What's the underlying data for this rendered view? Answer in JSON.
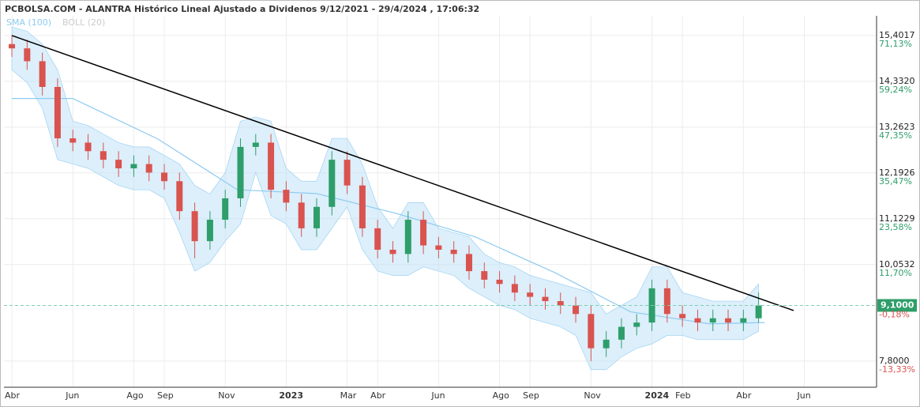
{
  "chart_data": {
    "type": "candlestick",
    "title": "PCBOLSA.COM - ALANTRA Histórico Lineal Ajustado a Dividenos 9/12/2021 - 29/4/2024 , 17:06:32",
    "legend": [
      "SMA (100)",
      "BOLL (20)"
    ],
    "x": [
      0,
      0.5,
      1,
      1.5,
      2,
      2.5,
      3,
      3.5,
      4,
      4.5,
      5,
      5.5,
      6,
      6.5,
      7,
      7.5,
      8,
      8.5,
      9,
      9.5,
      10,
      10.5,
      11,
      11.5,
      12,
      12.5,
      13,
      13.5,
      14,
      14.5,
      15,
      15.5,
      16,
      16.5,
      17,
      17.5,
      18,
      18.5,
      19,
      19.5,
      20,
      20.5,
      21,
      21.5,
      22,
      22.5,
      23,
      23.5,
      24,
      24.5
    ],
    "open": [
      15.2,
      15.1,
      14.8,
      14.2,
      13.0,
      12.9,
      12.7,
      12.5,
      12.3,
      12.4,
      12.2,
      12.0,
      11.3,
      10.6,
      11.1,
      11.6,
      12.8,
      12.9,
      11.8,
      11.5,
      10.9,
      11.4,
      12.5,
      11.9,
      10.9,
      10.4,
      10.3,
      11.1,
      10.5,
      10.4,
      10.3,
      9.9,
      9.7,
      9.6,
      9.4,
      9.3,
      9.2,
      9.1,
      8.9,
      8.1,
      8.3,
      8.6,
      8.7,
      9.5,
      8.9,
      8.8,
      8.7,
      8.8,
      8.7,
      8.8
    ],
    "high": [
      15.4,
      15.3,
      15.0,
      14.4,
      13.2,
      13.1,
      12.9,
      12.7,
      12.6,
      12.6,
      12.4,
      12.2,
      11.5,
      11.3,
      11.8,
      13.0,
      13.1,
      13.1,
      12.0,
      11.7,
      11.6,
      12.7,
      12.7,
      12.1,
      11.1,
      10.6,
      11.3,
      11.3,
      10.7,
      10.6,
      10.5,
      10.1,
      9.9,
      9.8,
      9.6,
      9.5,
      9.4,
      9.3,
      9.1,
      8.5,
      8.8,
      8.9,
      9.7,
      9.7,
      9.1,
      9.0,
      9.0,
      9.0,
      9.0,
      9.4
    ],
    "low": [
      14.9,
      14.6,
      14.0,
      12.8,
      12.7,
      12.5,
      12.3,
      12.1,
      12.1,
      12.0,
      11.8,
      11.1,
      10.2,
      10.4,
      10.9,
      11.4,
      12.6,
      11.6,
      11.3,
      10.7,
      10.7,
      11.2,
      11.7,
      10.7,
      10.2,
      10.1,
      10.1,
      10.3,
      10.2,
      10.1,
      9.7,
      9.5,
      9.4,
      9.2,
      9.1,
      9.0,
      8.9,
      8.7,
      7.8,
      7.9,
      8.1,
      8.4,
      8.5,
      8.7,
      8.6,
      8.5,
      8.5,
      8.5,
      8.5,
      8.7
    ],
    "close": [
      15.1,
      14.8,
      14.2,
      13.0,
      12.9,
      12.7,
      12.5,
      12.3,
      12.4,
      12.2,
      12.0,
      11.3,
      10.6,
      11.1,
      11.6,
      12.8,
      12.9,
      11.8,
      11.5,
      10.9,
      11.4,
      12.5,
      11.9,
      10.9,
      10.4,
      10.3,
      11.1,
      10.5,
      10.4,
      10.3,
      9.9,
      9.7,
      9.6,
      9.4,
      9.3,
      9.2,
      9.1,
      8.9,
      8.1,
      8.3,
      8.6,
      8.7,
      9.5,
      8.9,
      8.8,
      8.7,
      8.8,
      8.7,
      8.8,
      9.1
    ],
    "up_color": "#2e9e6a",
    "down_color": "#d9534f",
    "boll_upper": [
      15.6,
      15.5,
      15.2,
      14.6,
      13.4,
      13.3,
      13.1,
      12.9,
      12.8,
      12.8,
      12.6,
      12.4,
      11.9,
      11.7,
      12.2,
      13.4,
      13.5,
      13.4,
      12.3,
      12.0,
      12.0,
      13.0,
      13.0,
      12.4,
      11.4,
      10.9,
      11.5,
      11.5,
      10.9,
      10.8,
      10.7,
      10.3,
      10.1,
      10.0,
      9.8,
      9.7,
      9.6,
      9.5,
      9.4,
      8.9,
      9.1,
      9.3,
      10.0,
      10.0,
      9.4,
      9.3,
      9.2,
      9.2,
      9.2,
      9.6
    ],
    "boll_lower": [
      14.6,
      14.3,
      13.7,
      12.5,
      12.4,
      12.3,
      12.1,
      11.9,
      11.8,
      11.8,
      11.6,
      10.8,
      9.9,
      10.1,
      10.6,
      11.0,
      12.2,
      11.2,
      11.0,
      10.4,
      10.4,
      10.9,
      11.4,
      10.4,
      9.9,
      9.8,
      9.8,
      10.0,
      9.9,
      9.8,
      9.5,
      9.3,
      9.1,
      9.0,
      8.8,
      8.7,
      8.6,
      8.4,
      7.6,
      7.6,
      7.9,
      8.1,
      8.2,
      8.4,
      8.4,
      8.3,
      8.3,
      8.3,
      8.3,
      8.5
    ],
    "boll_color": "#bfe2f7",
    "sma": {
      "name": "SMA (100)",
      "color": "#8ccbf0",
      "x": [
        0,
        2,
        4.8,
        7.4,
        10,
        12.6,
        15.2,
        17.8,
        20.3,
        22.9,
        24.7
      ],
      "values": [
        13.93,
        13.93,
        12.98,
        11.8,
        11.71,
        11.25,
        10.7,
        9.87,
        8.95,
        8.67,
        8.7
      ]
    },
    "trendline": {
      "x": [
        0,
        25.65
      ],
      "values": [
        15.4,
        8.98
      ],
      "color": "#000000"
    },
    "current": {
      "value": 9.1,
      "label": "9,1000",
      "change": "-0,18%",
      "color": "#2e9e6a"
    },
    "xlim": [
      -0.26,
      28.37
    ],
    "ylim": [
      7.19,
      15.86
    ],
    "xticks": [
      {
        "value": 0,
        "label": "Abr"
      },
      {
        "value": 2,
        "label": "Jun"
      },
      {
        "value": 4,
        "label": "Ago"
      },
      {
        "value": 5,
        "label": "Sep"
      },
      {
        "value": 7,
        "label": "Nov"
      },
      {
        "value": 9,
        "label": "2023"
      },
      {
        "value": 11,
        "label": "Mar"
      },
      {
        "value": 12,
        "label": "Abr"
      },
      {
        "value": 14,
        "label": "Jun"
      },
      {
        "value": 16,
        "label": "Ago"
      },
      {
        "value": 17,
        "label": "Sep"
      },
      {
        "value": 19,
        "label": "Nov"
      },
      {
        "value": 21,
        "label": "2024"
      },
      {
        "value": 22,
        "label": "Feb"
      },
      {
        "value": 24,
        "label": "Abr"
      },
      {
        "value": 26,
        "label": "Jun"
      }
    ],
    "yticks": [
      {
        "value": 15.4017,
        "label": "15,4017",
        "change": "71,13%"
      },
      {
        "value": 14.332,
        "label": "14,3320",
        "change": "59,24%"
      },
      {
        "value": 13.2623,
        "label": "13,2623",
        "change": "47,35%"
      },
      {
        "value": 12.1926,
        "label": "12,1926",
        "change": "35,47%"
      },
      {
        "value": 11.1229,
        "label": "11,1229",
        "change": "23,58%"
      },
      {
        "value": 10.0532,
        "label": "10,0532",
        "change": "11,70%"
      },
      {
        "value": 7.8,
        "label": "7,8000",
        "change": "-13,33%"
      }
    ],
    "grid": true
  }
}
